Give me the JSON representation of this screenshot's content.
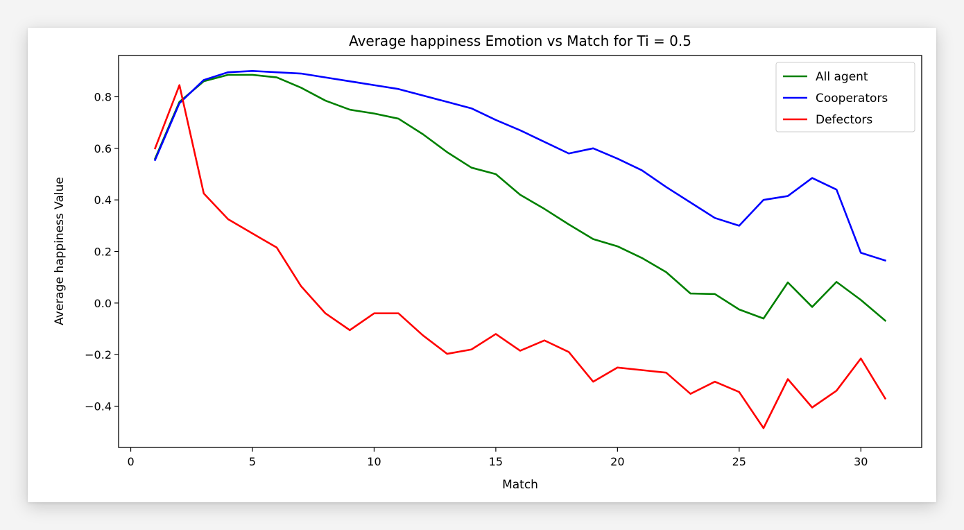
{
  "chart_data": {
    "type": "line",
    "title": "Average happiness Emotion vs Match for Ti = 0.5",
    "xlabel": "Match",
    "ylabel": "Average happiness Value",
    "xlim": [
      -0.5,
      32.5
    ],
    "ylim": [
      -0.56,
      0.96
    ],
    "xticks": [
      0,
      5,
      10,
      15,
      20,
      25,
      30
    ],
    "xtick_labels": [
      "0",
      "5",
      "10",
      "15",
      "20",
      "25",
      "30"
    ],
    "yticks": [
      -0.4,
      -0.2,
      0.0,
      0.2,
      0.4,
      0.6,
      0.8
    ],
    "ytick_labels": [
      "−0.4",
      "−0.2",
      "0.0",
      "0.2",
      "0.4",
      "0.6",
      "0.8"
    ],
    "grid": false,
    "legend_position": "top-right",
    "x": [
      1,
      2,
      3,
      4,
      5,
      6,
      7,
      8,
      9,
      10,
      11,
      12,
      13,
      14,
      15,
      16,
      17,
      18,
      19,
      20,
      21,
      22,
      23,
      24,
      25,
      26,
      27,
      28,
      29,
      30,
      31
    ],
    "series": [
      {
        "name": "All agent",
        "color": "#008000",
        "values": [
          0.56,
          0.78,
          0.86,
          0.885,
          0.885,
          0.875,
          0.835,
          0.785,
          0.75,
          0.735,
          0.715,
          0.655,
          0.585,
          0.525,
          0.5,
          0.42,
          0.365,
          0.305,
          0.248,
          0.22,
          0.175,
          0.12,
          0.037,
          0.035,
          -0.025,
          -0.06,
          0.08,
          -0.015,
          0.082,
          0.012,
          -0.068
        ]
      },
      {
        "name": "Cooperators",
        "color": "#0000ff",
        "values": [
          0.555,
          0.775,
          0.865,
          0.895,
          0.9,
          0.895,
          0.89,
          0.875,
          0.86,
          0.845,
          0.83,
          0.805,
          0.78,
          0.755,
          0.71,
          0.67,
          0.625,
          0.58,
          0.6,
          0.56,
          0.515,
          0.45,
          0.39,
          0.33,
          0.3,
          0.4,
          0.415,
          0.485,
          0.44,
          0.195,
          0.165
        ]
      },
      {
        "name": "Defectors",
        "color": "#ff0000",
        "values": [
          0.6,
          0.845,
          0.425,
          0.325,
          0.27,
          0.215,
          0.065,
          -0.04,
          -0.105,
          -0.04,
          -0.04,
          -0.125,
          -0.197,
          -0.18,
          -0.12,
          -0.185,
          -0.145,
          -0.19,
          -0.305,
          -0.25,
          -0.26,
          -0.27,
          -0.352,
          -0.305,
          -0.345,
          -0.485,
          -0.295,
          -0.405,
          -0.34,
          -0.215,
          -0.37
        ]
      }
    ]
  }
}
